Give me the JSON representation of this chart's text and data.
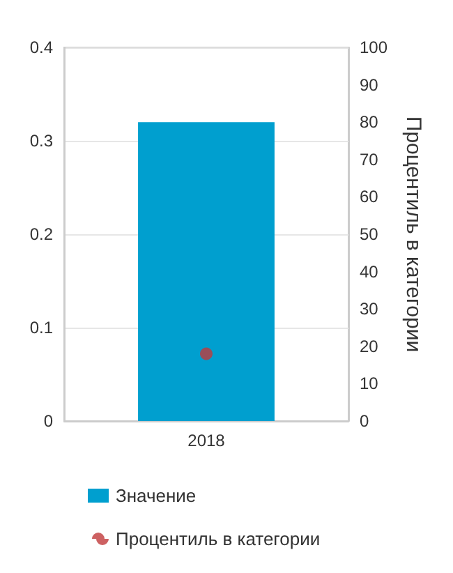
{
  "chart_data": {
    "type": "bar",
    "y2label": "Процентиль в категории",
    "categories": [
      "2018"
    ],
    "series": [
      {
        "name": "Значение",
        "color": "#009fcf",
        "values": [
          0.32
        ]
      },
      {
        "name": "Процентиль в категории",
        "type": "scatter",
        "axis": "y2",
        "color": "#c0393b",
        "values": [
          18
        ]
      }
    ],
    "ylim": [
      0,
      0.4
    ],
    "yticks": [
      0,
      0.1,
      0.2,
      0.3,
      0.4
    ],
    "y2lim": [
      0,
      100
    ],
    "y2ticks": [
      0,
      10,
      20,
      30,
      40,
      50,
      60,
      70,
      80,
      90,
      100
    ],
    "grid": "y",
    "legend": "bottom",
    "marker": "circle"
  }
}
